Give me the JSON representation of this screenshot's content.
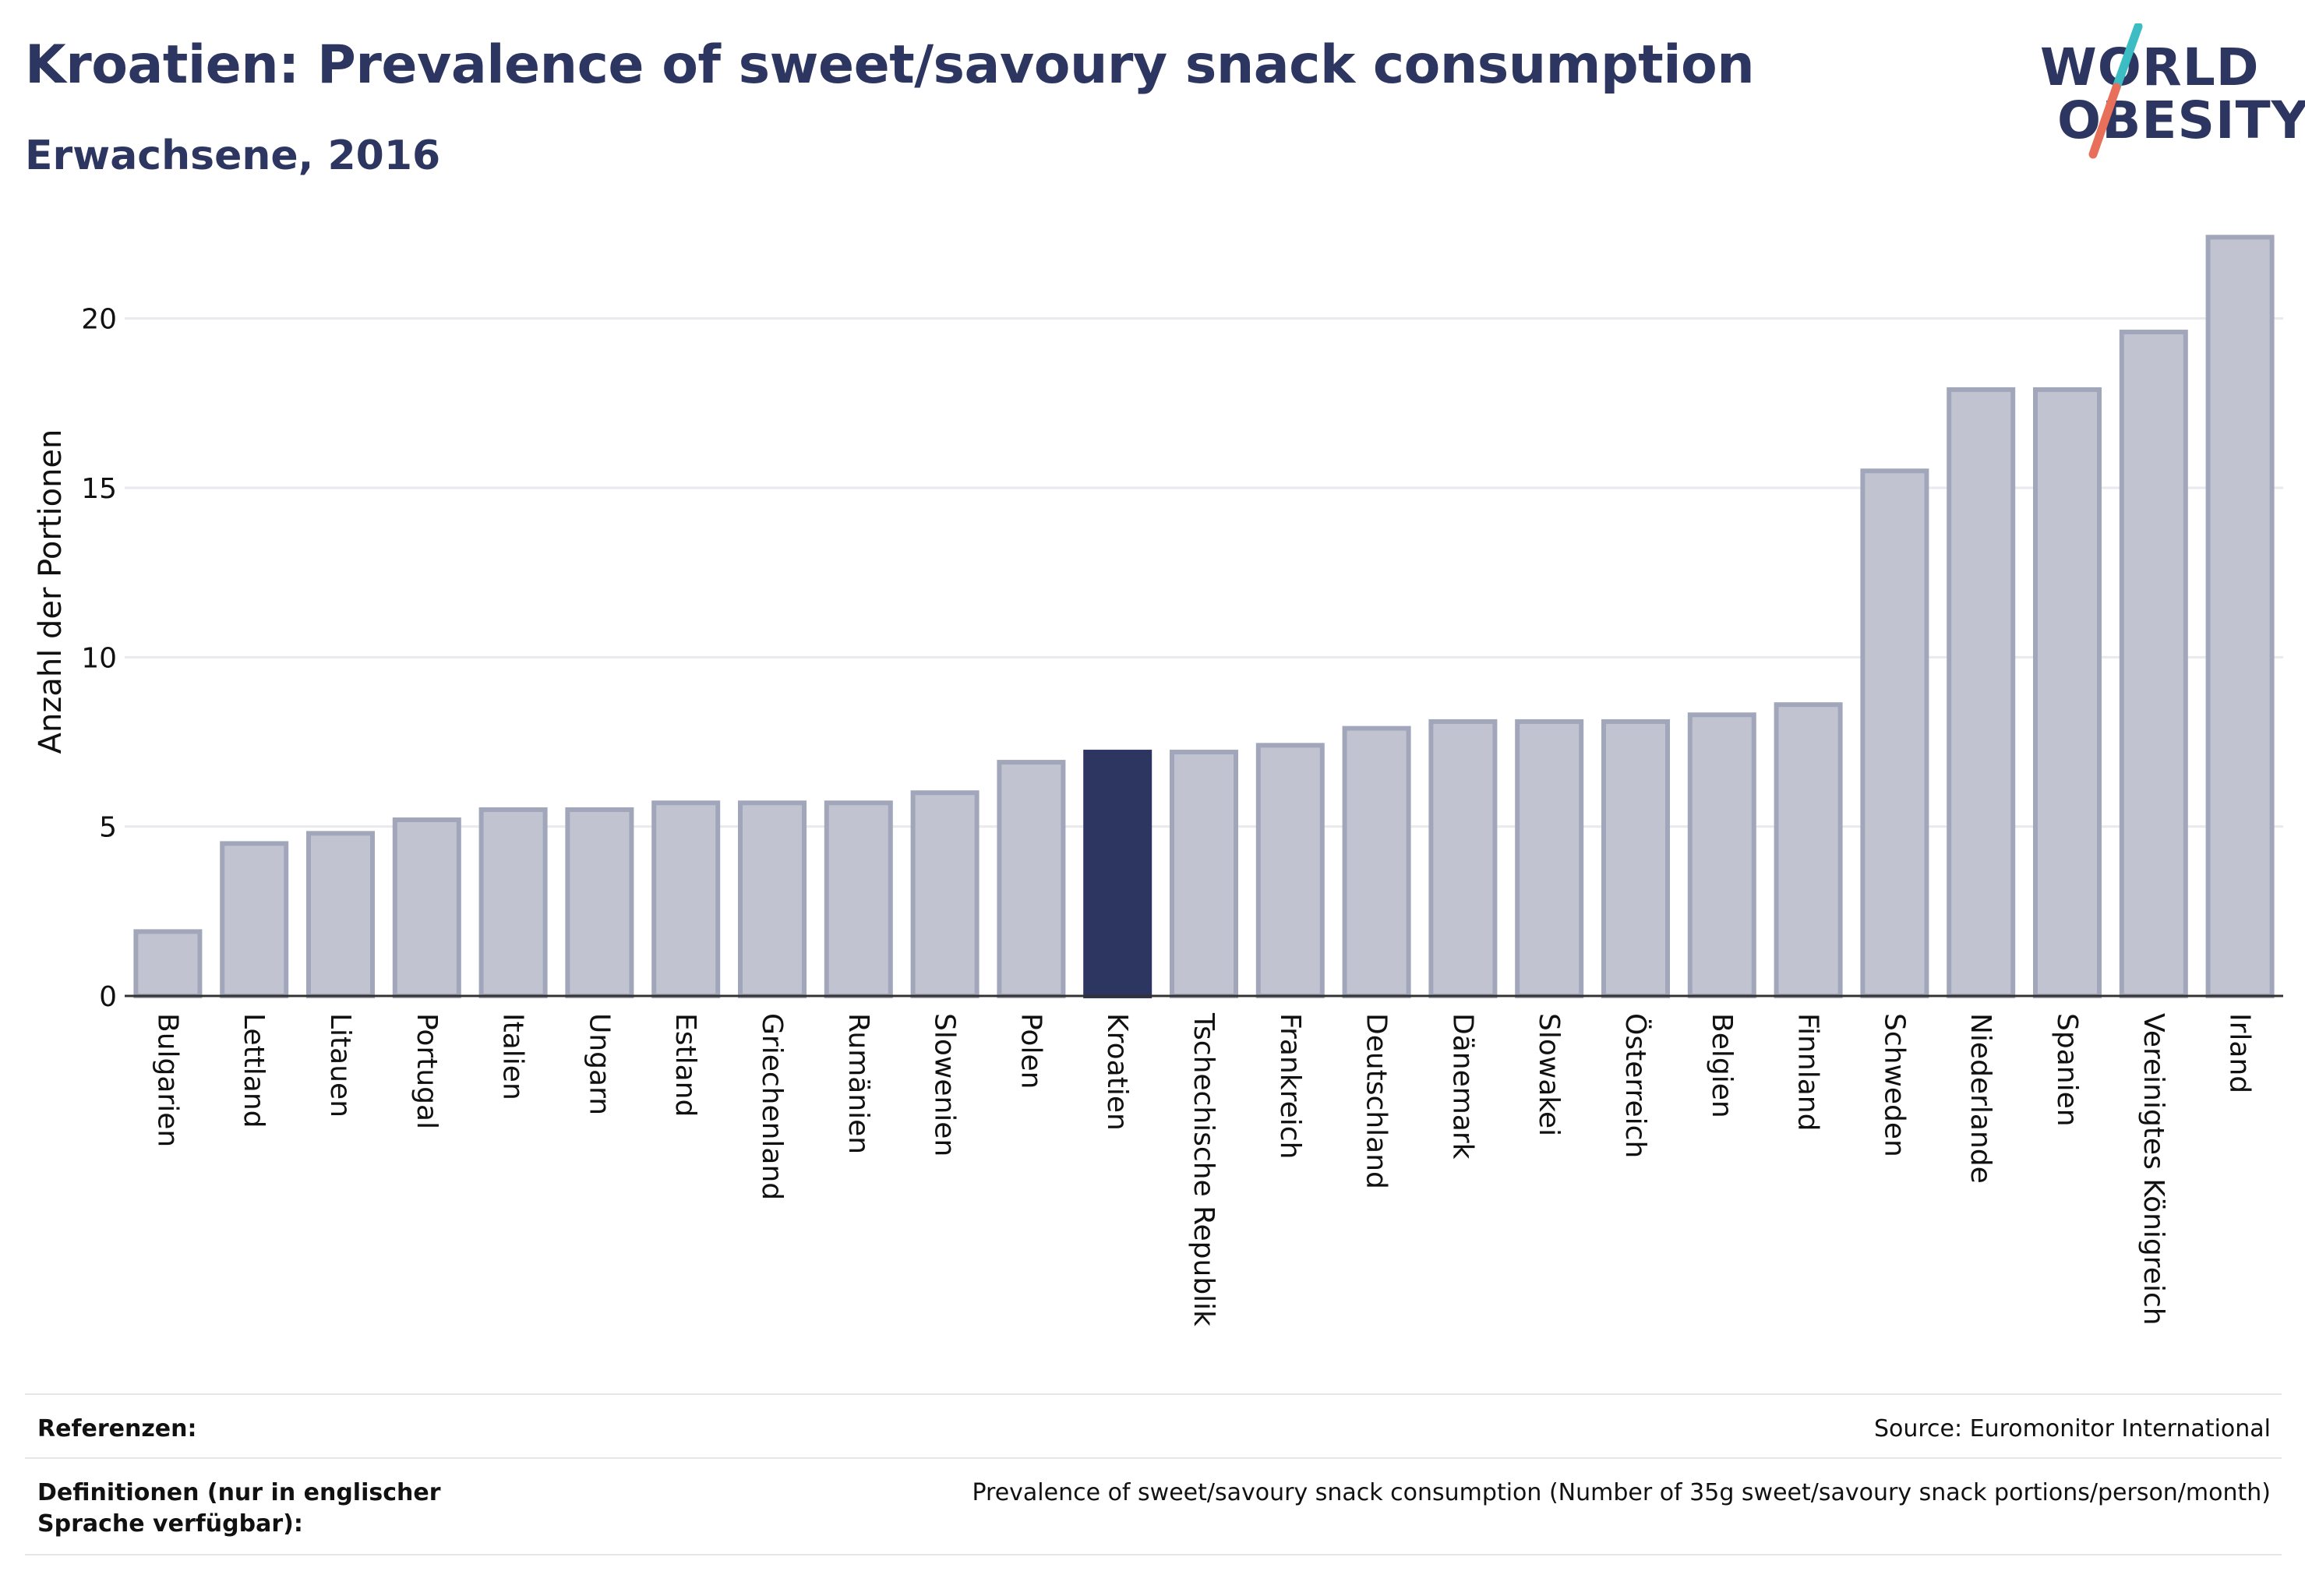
{
  "header": {
    "title": "Kroatien: Prevalence of sweet/savoury snack consumption",
    "subtitle": "Erwachsene, 2016"
  },
  "logo": {
    "line1": "WORLD",
    "line2": "OBESITY",
    "icon": "world-obesity-logo",
    "colors": {
      "text": "#2c3661",
      "slash_top": "#3cbcc3",
      "slash_bottom": "#e8705a"
    }
  },
  "chart_data": {
    "type": "bar",
    "title": "",
    "xlabel": "",
    "ylabel": "Anzahl der Portionen",
    "ylim": [
      0,
      22.5
    ],
    "yticks": [
      0,
      5,
      10,
      15,
      20
    ],
    "grid": true,
    "highlight": "Kroatien",
    "colors": {
      "bar": "#c1c4d0",
      "bar_border": "#a1a6ba",
      "highlight": "#2c3661"
    },
    "categories": [
      "Bulgarien",
      "Lettland",
      "Litauen",
      "Portugal",
      "Italien",
      "Ungarn",
      "Estland",
      "Griechenland",
      "Rumänien",
      "Slowenien",
      "Polen",
      "Kroatien",
      "Tschechische Republik",
      "Frankreich",
      "Deutschland",
      "Dänemark",
      "Slowakei",
      "Österreich",
      "Belgien",
      "Finnland",
      "Schweden",
      "Niederlande",
      "Spanien",
      "Vereinigtes Königreich",
      "Irland"
    ],
    "values": [
      1.9,
      4.5,
      4.8,
      5.2,
      5.5,
      5.5,
      5.7,
      5.7,
      5.7,
      6.0,
      6.9,
      7.2,
      7.2,
      7.4,
      7.9,
      8.1,
      8.1,
      8.1,
      8.3,
      8.6,
      15.5,
      17.9,
      17.9,
      19.6,
      22.4
    ]
  },
  "footer": {
    "references_label": "Referenzen:",
    "references_value": "Source: Euromonitor International",
    "definitions_label": "Definitionen (nur in englischer Sprache verfügbar):",
    "definitions_value": "Prevalence of sweet/savoury snack consumption (Number of 35g sweet/savoury snack portions/person/month)"
  }
}
